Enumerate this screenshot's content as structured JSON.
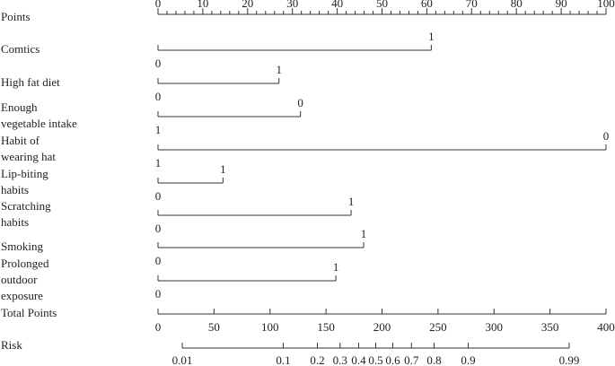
{
  "chart_data": {
    "type": "nomogram",
    "points_axis": {
      "label": "Points",
      "xlim": [
        0,
        100
      ],
      "xticks": [
        0,
        10,
        20,
        30,
        40,
        50,
        60,
        70,
        80,
        90,
        100
      ],
      "minor_ticks": [
        2,
        4,
        6,
        8,
        12,
        14,
        16,
        18,
        22,
        24,
        26,
        28,
        32,
        34,
        36,
        38,
        42,
        44,
        46,
        48,
        52,
        54,
        56,
        58,
        62,
        64,
        66,
        68,
        72,
        74,
        76,
        78,
        82,
        84,
        86,
        88,
        92,
        94,
        96,
        98
      ]
    },
    "variables": [
      {
        "label": [
          "Comtics"
        ],
        "points": 61,
        "start_label": "0",
        "end_label": "1"
      },
      {
        "label": [
          "High fat diet"
        ],
        "points": 27,
        "start_label": "0",
        "end_label": "1"
      },
      {
        "label": [
          "Enough",
          "vegetable intake"
        ],
        "points": 31.8,
        "start_label": "1",
        "end_label": "0"
      },
      {
        "label": [
          "Habit of",
          "wearing hat"
        ],
        "points": 100,
        "start_label": "1",
        "end_label": "0"
      },
      {
        "label": [
          "Lip-biting",
          "habits"
        ],
        "points": 14.5,
        "start_label": "0",
        "end_label": "1"
      },
      {
        "label": [
          "Scratching",
          "habits"
        ],
        "points": 43.1,
        "start_label": "0",
        "end_label": "1"
      },
      {
        "label": [
          "Smoking"
        ],
        "points": 45.9,
        "start_label": "0",
        "end_label": "1"
      },
      {
        "label": [
          "Prolonged",
          "outdoor",
          "exposure"
        ],
        "points": 39.7,
        "start_label": "0",
        "end_label": "1"
      }
    ],
    "total_points_axis": {
      "label": "Total Points",
      "xlim": [
        0,
        400
      ],
      "xticks": [
        0,
        50,
        100,
        150,
        200,
        250,
        300,
        350,
        400
      ]
    },
    "risk_axis": {
      "label": "Risk",
      "scale": "logit",
      "xlim": [
        0.01,
        0.99
      ],
      "xticks": [
        0.01,
        0.1,
        0.2,
        0.3,
        0.4,
        0.5,
        0.6,
        0.7,
        0.8,
        0.9,
        0.99
      ]
    }
  }
}
